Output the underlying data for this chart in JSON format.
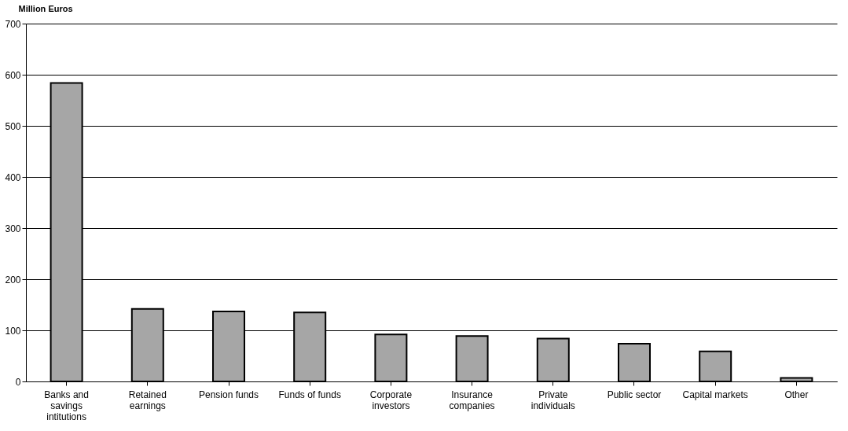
{
  "chart_data": {
    "type": "bar",
    "ylabel": "Million Euros",
    "categories": [
      "Banks and savings intitutions",
      "Retained earnings",
      "Pension funds",
      "Funds of funds",
      "Corporate investors",
      "Insurance companies",
      "Private individuals",
      "Public sector",
      "Capital markets",
      "Other"
    ],
    "values": [
      584,
      142,
      137,
      135,
      92,
      89,
      84,
      74,
      59,
      7
    ],
    "color": "#a6a6a6",
    "ylim": [
      0,
      700
    ],
    "yticks": [
      0,
      100,
      200,
      300,
      400,
      500,
      600,
      700
    ],
    "grid": "y"
  }
}
